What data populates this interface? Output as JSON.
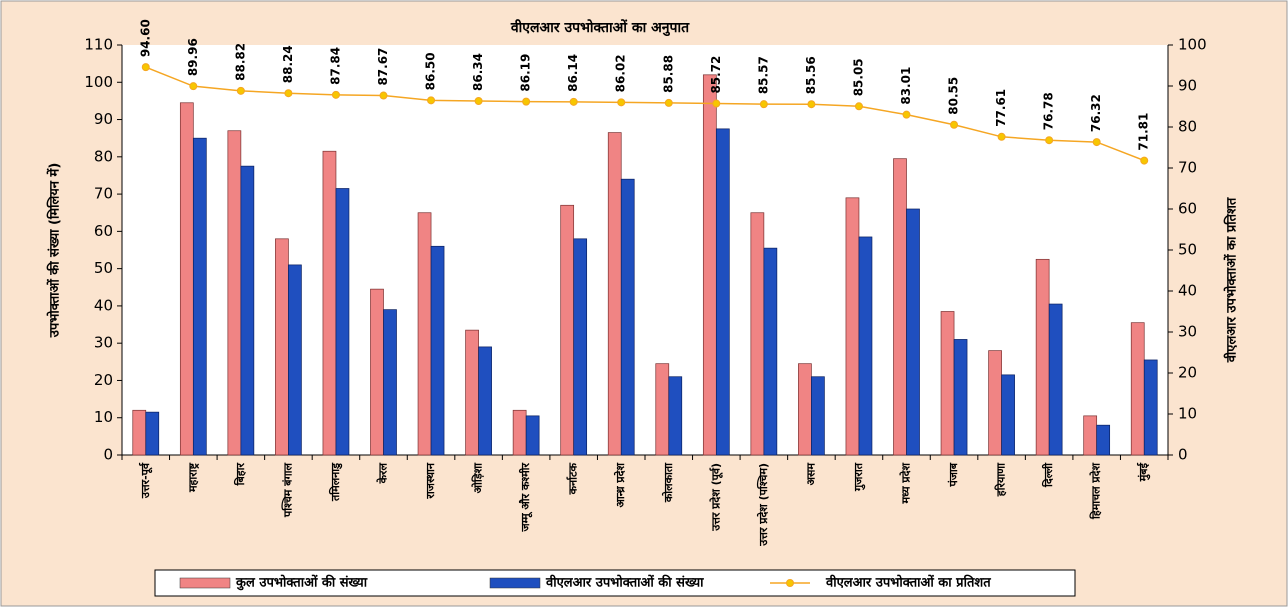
{
  "chart_data": {
    "type": "bar",
    "title": "वीएलआर उपभोक्ताओं का अनुपात",
    "y_label": "उपभोक्ताओं की संख्या (मिलियन में)",
    "y2_label": "वीएलआर उपभोक्ताओं का प्रतिशत",
    "categories": [
      "उत्तर-पूर्व",
      "महाराष्ट्र",
      "बिहार",
      "पश्चिम बंगाल",
      "तमिलनाडु",
      "केरल",
      "राजस्थान",
      "ओड़िशा",
      "जम्मू और कश्मीर",
      "कर्नाटक",
      "आन्ध्र प्रदेश",
      "कोलकाता",
      "उत्तर प्रदेश (पूर्व)",
      "उत्तर प्रदेश (पश्चिम)",
      "असम",
      "गुजरात",
      "मध्य प्रदेश",
      "पंजाब",
      "हरियाणा",
      "दिल्ली",
      "हिमाचल प्रदेश",
      "मुंबई"
    ],
    "series": [
      {
        "name": "कुल उपभोक्ताओं की संख्या",
        "color": "#f08484",
        "type": "bar",
        "values": [
          12,
          94.5,
          87,
          58,
          81.5,
          44.5,
          65,
          33.5,
          12,
          67,
          86.5,
          24.5,
          102,
          65,
          24.5,
          69,
          79.5,
          38.5,
          28,
          52.5,
          10.5,
          35.5
        ]
      },
      {
        "name": "वीएलआर उपभोक्ताओं की संख्या",
        "color": "#1f4fbf",
        "type": "bar",
        "values": [
          11.5,
          85,
          77.5,
          51,
          71.5,
          39,
          56,
          29,
          10.5,
          58,
          74,
          21,
          87.5,
          55.5,
          21,
          58.5,
          66,
          31,
          21.5,
          40.5,
          8,
          25.5
        ]
      },
      {
        "name": "वीएलआर उपभोक्ताओं का प्रतिशत",
        "color": "#f5a623",
        "type": "line",
        "axis": "y2",
        "values": [
          94.6,
          89.96,
          88.82,
          88.24,
          87.84,
          87.67,
          86.5,
          86.34,
          86.19,
          86.14,
          86.02,
          85.88,
          85.72,
          85.57,
          85.56,
          85.05,
          83.01,
          80.55,
          77.61,
          76.78,
          76.32,
          71.81
        ],
        "value_labels": [
          "94.60",
          "89.96",
          "88.82",
          "88.24",
          "87.84",
          "87.67",
          "86.50",
          "86.34",
          "86.19",
          "86.14",
          "86.02",
          "85.88",
          "85.72",
          "85.57",
          "85.56",
          "85.05",
          "83.01",
          "80.55",
          "77.61",
          "76.78",
          "76.32",
          "71.81"
        ]
      }
    ],
    "ylim": [
      0,
      110
    ],
    "yticks": [
      0,
      10,
      20,
      30,
      40,
      50,
      60,
      70,
      80,
      90,
      100,
      110
    ],
    "y2lim": [
      0,
      100
    ],
    "y2ticks": [
      0,
      10,
      20,
      30,
      40,
      50,
      60,
      70,
      80,
      90,
      100
    ],
    "legend": "bottom"
  }
}
